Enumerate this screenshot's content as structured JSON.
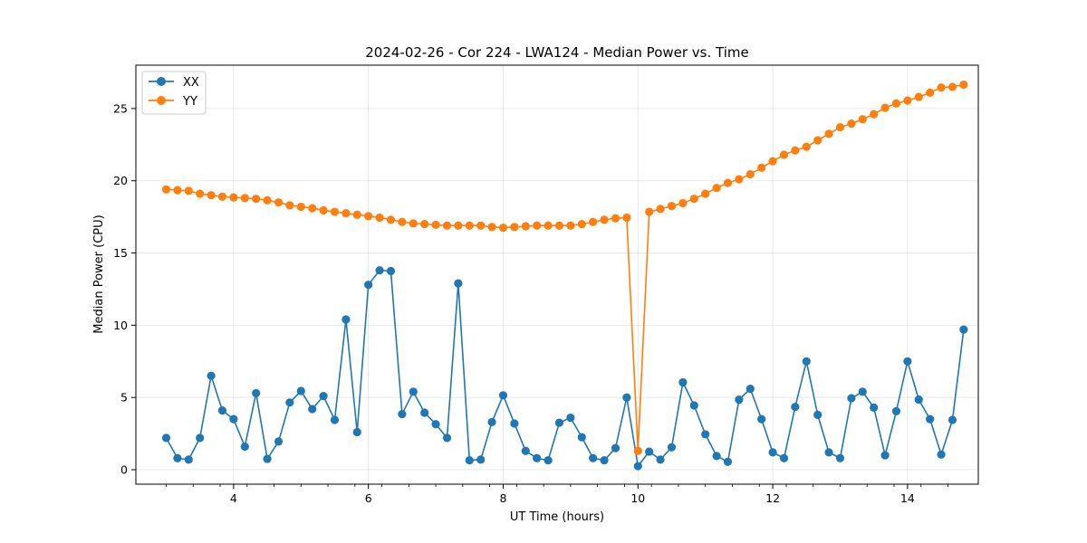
{
  "chart_data": {
    "type": "line",
    "title": "2024-02-26 - Cor 224 - LWA124 - Median Power vs. Time",
    "xlabel": "UT Time (hours)",
    "ylabel": "Median Power (CPU)",
    "xlim": [
      2.55,
      15.05
    ],
    "ylim": [
      -1.0,
      28.0
    ],
    "x_ticks": [
      4,
      6,
      8,
      10,
      12,
      14
    ],
    "y_ticks": [
      0,
      5,
      10,
      15,
      20,
      25
    ],
    "x_tick_labels": [
      "4",
      "6",
      "8",
      "10",
      "12",
      "14"
    ],
    "y_tick_labels": [
      "0",
      "5",
      "10",
      "15",
      "20",
      "25"
    ],
    "grid": true,
    "legend_position": "top-left",
    "x": [
      3.0,
      3.167,
      3.333,
      3.5,
      3.667,
      3.833,
      4.0,
      4.167,
      4.333,
      4.5,
      4.667,
      4.833,
      5.0,
      5.167,
      5.333,
      5.5,
      5.667,
      5.833,
      6.0,
      6.167,
      6.333,
      6.5,
      6.667,
      6.833,
      7.0,
      7.167,
      7.333,
      7.5,
      7.667,
      7.833,
      8.0,
      8.167,
      8.333,
      8.5,
      8.667,
      8.833,
      9.0,
      9.167,
      9.333,
      9.5,
      9.667,
      9.833,
      10.0,
      10.167,
      10.333,
      10.5,
      10.667,
      10.833,
      11.0,
      11.167,
      11.333,
      11.5,
      11.667,
      11.833,
      12.0,
      12.167,
      12.333,
      12.5,
      12.667,
      12.833,
      13.0,
      13.167,
      13.333,
      13.5,
      13.667,
      13.833,
      14.0,
      14.167,
      14.333,
      14.5,
      14.667,
      14.833
    ],
    "series": [
      {
        "name": "XX",
        "color": "#1f77b4",
        "values": [
          2.2,
          0.8,
          0.7,
          2.2,
          6.5,
          4.1,
          3.5,
          1.6,
          5.3,
          0.75,
          1.95,
          4.65,
          5.45,
          4.2,
          5.1,
          3.45,
          10.4,
          2.6,
          12.8,
          13.8,
          13.75,
          3.85,
          5.4,
          3.95,
          3.15,
          2.2,
          12.9,
          0.65,
          0.7,
          3.3,
          5.15,
          3.2,
          1.3,
          0.8,
          0.65,
          3.25,
          3.6,
          2.25,
          0.8,
          0.65,
          1.5,
          5.0,
          0.25,
          1.25,
          0.7,
          1.55,
          6.05,
          4.45,
          2.45,
          0.95,
          0.55,
          4.85,
          5.6,
          3.5,
          1.2,
          0.8,
          4.35,
          7.5,
          3.8,
          1.2,
          0.8,
          4.95,
          5.4,
          4.3,
          1.0,
          4.05,
          7.5,
          4.85,
          3.5,
          1.05,
          3.45,
          9.7
        ]
      },
      {
        "name": "YY",
        "color": "#ff7f0e",
        "values": [
          19.4,
          19.35,
          19.3,
          19.1,
          19.0,
          18.9,
          18.85,
          18.8,
          18.75,
          18.65,
          18.5,
          18.3,
          18.2,
          18.1,
          17.95,
          17.85,
          17.75,
          17.65,
          17.55,
          17.45,
          17.3,
          17.15,
          17.05,
          17.0,
          16.95,
          16.9,
          16.9,
          16.9,
          16.9,
          16.8,
          16.75,
          16.8,
          16.85,
          16.9,
          16.9,
          16.9,
          16.9,
          17.0,
          17.15,
          17.3,
          17.4,
          17.45,
          1.3,
          17.85,
          18.05,
          18.25,
          18.45,
          18.75,
          19.1,
          19.5,
          19.85,
          20.1,
          20.45,
          20.9,
          21.35,
          21.8,
          22.1,
          22.35,
          22.8,
          23.25,
          23.7,
          23.95,
          24.25,
          24.6,
          25.05,
          25.35,
          25.55,
          25.8,
          26.1,
          26.45,
          26.5,
          26.65
        ]
      }
    ]
  }
}
